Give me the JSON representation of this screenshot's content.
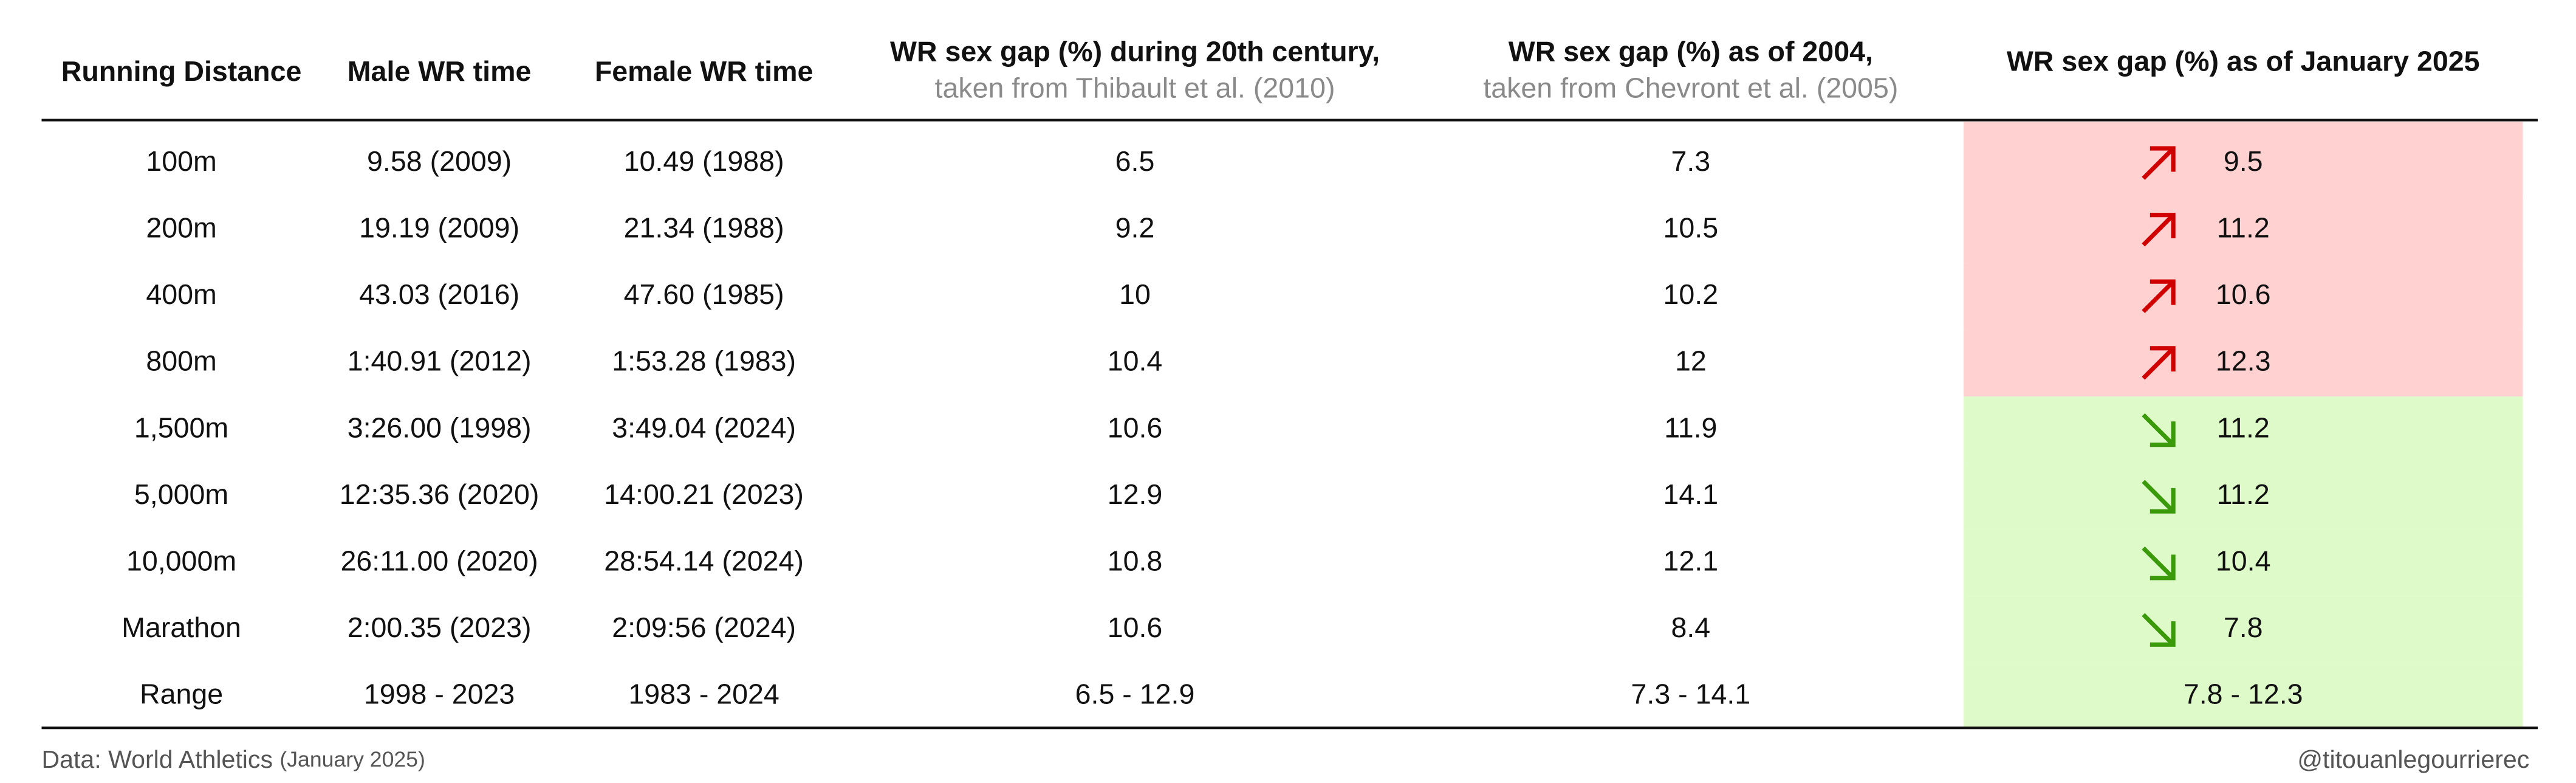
{
  "header": {
    "columns": [
      {
        "title": "Running Distance"
      },
      {
        "title": "Male WR time"
      },
      {
        "title": "Female WR time"
      },
      {
        "title": "WR sex gap (%) during 20th century,",
        "subtitle": "taken from Thibault et al. (2010)"
      },
      {
        "title": "WR sex gap (%) as of 2004,",
        "subtitle": "taken from Chevront et al. (2005)"
      },
      {
        "title": "WR sex gap (%) as of January 2025"
      }
    ]
  },
  "table": {
    "rows": [
      {
        "cells": [
          "100m",
          "9.58 (2009)",
          "10.49 (1988)",
          6.5,
          7.3,
          9.5
        ],
        "arrow": "up",
        "band_color": "#ffd1d1"
      },
      {
        "cells": [
          "200m",
          "19.19 (2009)",
          "21.34 (1988)",
          9.2,
          10.5,
          11.2
        ],
        "arrow": "up",
        "band_color": "#ffd1d1"
      },
      {
        "cells": [
          "400m",
          "43.03 (2016)",
          "47.60 (1985)",
          10,
          10.2,
          10.6
        ],
        "arrow": "up",
        "band_color": "#ffd1d1"
      },
      {
        "cells": [
          "800m",
          "1:40.91 (2012)",
          "1:53.28 (1983)",
          10.4,
          12,
          12.3
        ],
        "arrow": "up",
        "band_color": "#ffd1d1"
      },
      {
        "cells": [
          "1,500m",
          "3:26.00 (1998)",
          "3:49.04 (2024)",
          10.6,
          11.9,
          11.2
        ],
        "arrow": "down",
        "band_color": "#dffac9"
      },
      {
        "cells": [
          "5,000m",
          "12:35.36 (2020)",
          "14:00.21 (2023)",
          12.9,
          14.1,
          11.2
        ],
        "arrow": "down",
        "band_color": "#dffac9"
      },
      {
        "cells": [
          "10,000m",
          "26:11.00 (2020)",
          "28:54.14 (2024)",
          10.8,
          12.1,
          10.4
        ],
        "arrow": "down",
        "band_color": "#dffac9"
      },
      {
        "cells": [
          "Marathon",
          "2:00.35 (2023)",
          "2:09:56 (2024)",
          10.6,
          8.4,
          7.8
        ],
        "arrow": "down",
        "band_color": "#dffac9"
      },
      {
        "cells": [
          "Range",
          "1998 - 2023",
          "1983 - 2024",
          "6.5 - 12.9",
          "7.3 - 14.1",
          "7.8 - 12.3"
        ],
        "band_color": "#dffac9"
      }
    ],
    "arrow_colors": {
      "up": "#d00000",
      "down": "#3a9a0a"
    }
  },
  "footer": {
    "source": "Data: World Athletics",
    "source_date": "(January 2025)",
    "credit": "@titouanlegourrierec"
  }
}
